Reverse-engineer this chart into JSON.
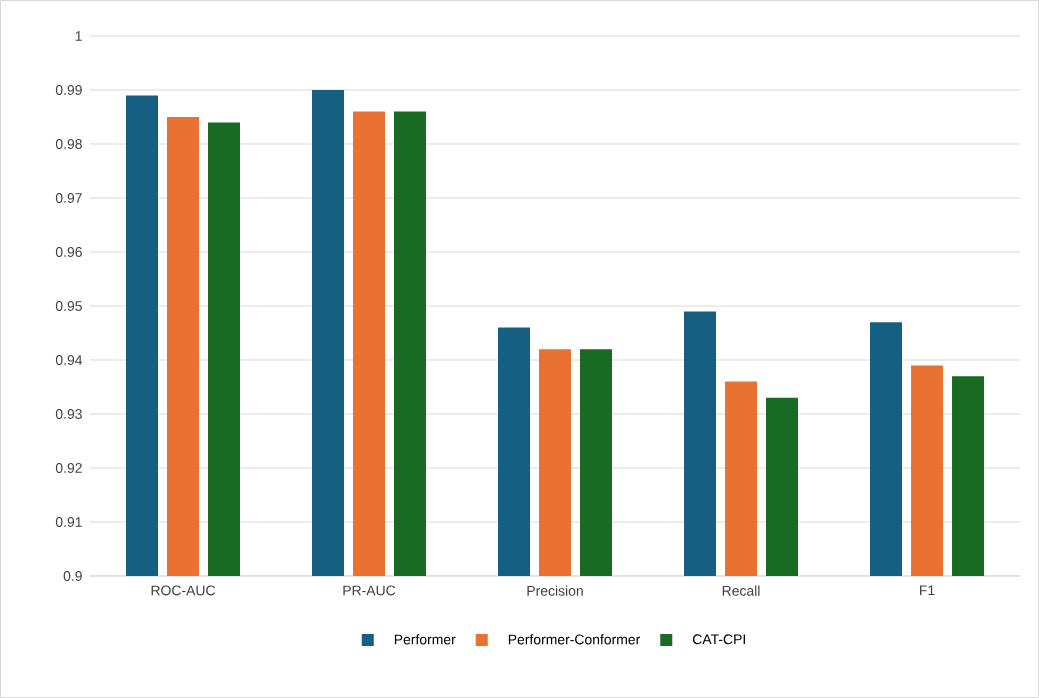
{
  "chart_data": {
    "type": "bar",
    "categories": [
      "ROC-AUC",
      "PR-AUC",
      "Precision",
      "Recall",
      "F1"
    ],
    "series": [
      {
        "name": "Performer",
        "color": "#156082",
        "values": [
          0.989,
          0.99,
          0.946,
          0.949,
          0.947
        ]
      },
      {
        "name": "Performer-Conformer",
        "color": "#e97132",
        "values": [
          0.985,
          0.986,
          0.942,
          0.936,
          0.939
        ]
      },
      {
        "name": "CAT-CPI",
        "color": "#196b24",
        "values": [
          0.984,
          0.986,
          0.942,
          0.933,
          0.937
        ]
      }
    ],
    "ylim": [
      0.9,
      1
    ],
    "yticks": [
      0.9,
      0.91,
      0.92,
      0.93,
      0.94,
      0.95,
      0.96,
      0.97,
      0.98,
      0.99,
      1
    ],
    "grid": "y",
    "legend": "bottom"
  }
}
